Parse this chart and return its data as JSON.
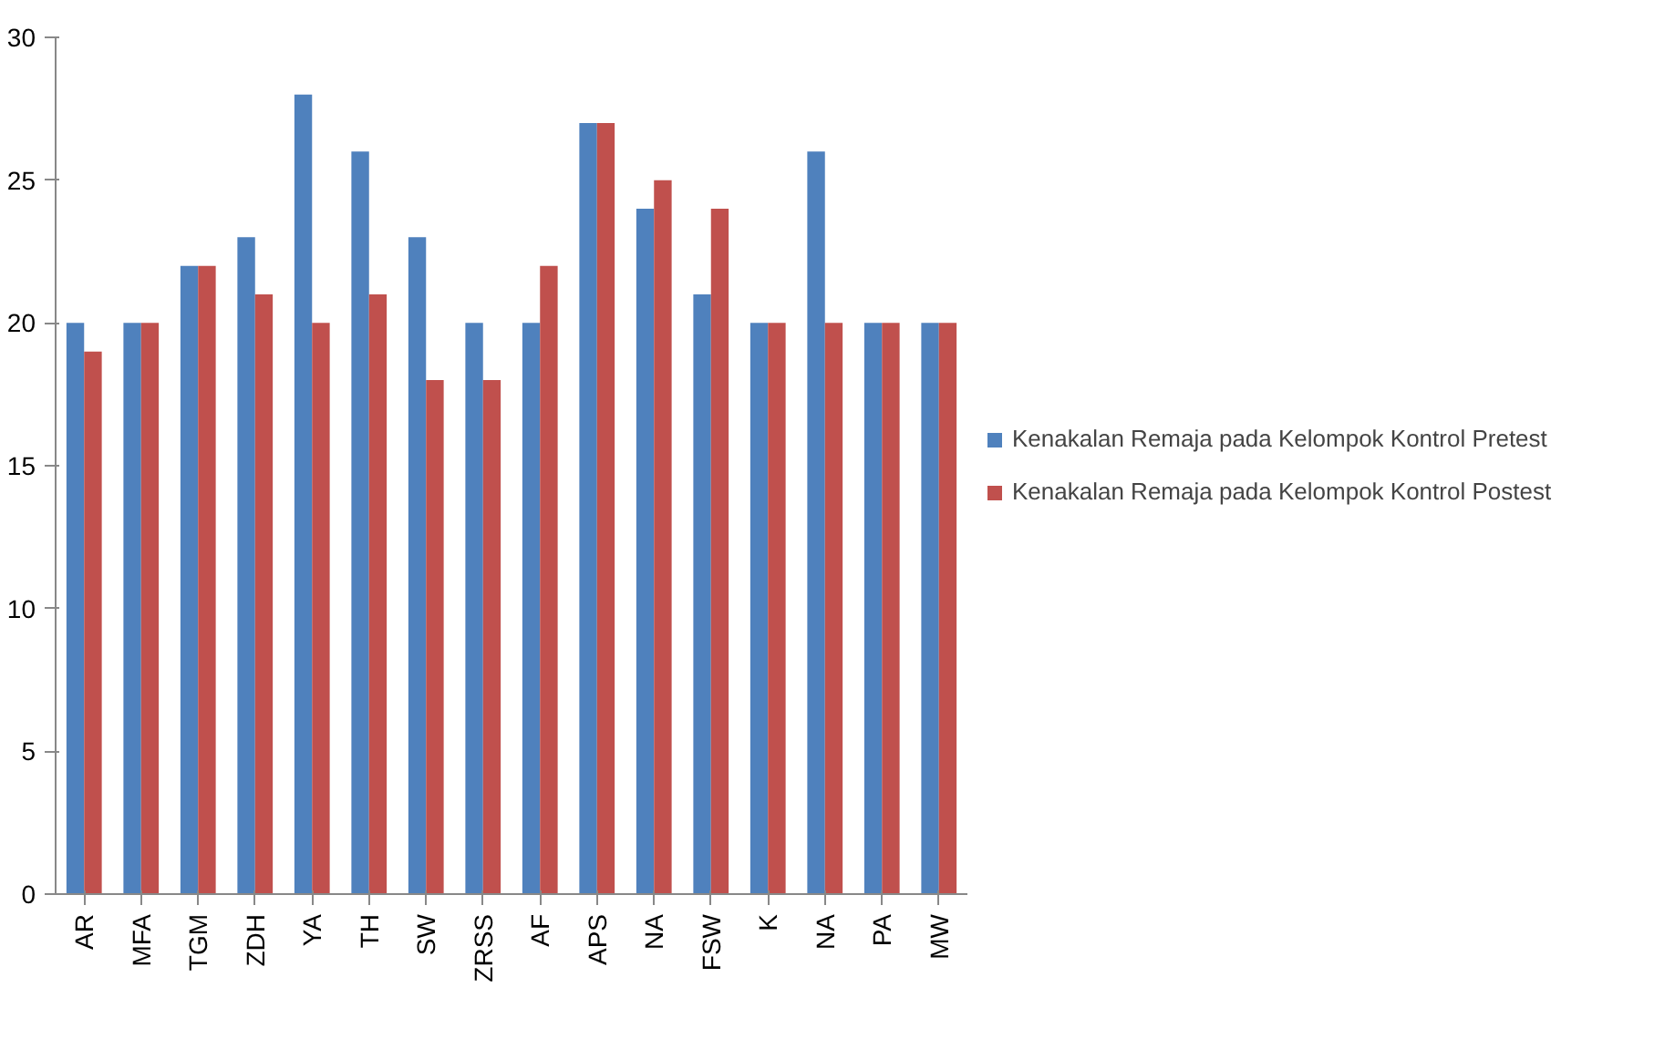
{
  "chart_data": {
    "type": "bar",
    "categories": [
      "AR",
      "MFA",
      "TGM",
      "ZDH",
      "YA",
      "TH",
      "SW",
      "ZRSS",
      "AF",
      "APS",
      "NA",
      "FSW",
      "K",
      "NA",
      "PA",
      "MW"
    ],
    "series": [
      {
        "name": "Kenakalan Remaja pada Kelompok Kontrol Pretest",
        "color": "#4f81bd",
        "values": [
          20,
          20,
          22,
          23,
          28,
          26,
          23,
          20,
          20,
          27,
          24,
          21,
          20,
          26,
          20,
          20
        ]
      },
      {
        "name": "Kenakalan Remaja pada Kelompok Kontrol Postest",
        "color": "#c0504d",
        "values": [
          19,
          20,
          22,
          21,
          20,
          21,
          18,
          18,
          22,
          27,
          25,
          24,
          20,
          20,
          20,
          20
        ]
      }
    ],
    "ylim": [
      0,
      30
    ],
    "yticks": [
      0,
      5,
      10,
      15,
      20,
      25,
      30
    ],
    "grid": false,
    "legend": "right"
  }
}
